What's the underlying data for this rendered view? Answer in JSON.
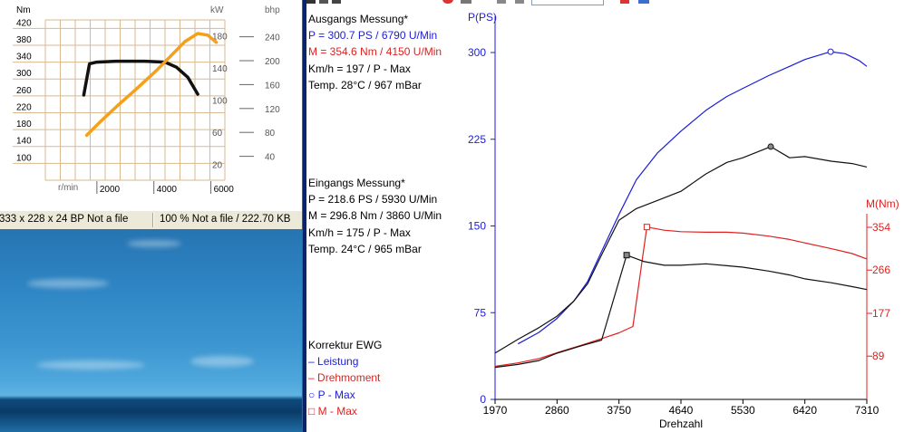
{
  "spec_chart": {
    "left_unit": "Nm",
    "kw_unit": "kW",
    "bhp_unit": "bhp",
    "nm_ticks": [
      "420",
      "380",
      "340",
      "300",
      "260",
      "220",
      "180",
      "140",
      "100"
    ],
    "kw_ticks": [
      "180",
      "140",
      "100",
      "60",
      "20"
    ],
    "bhp_ticks": [
      "240",
      "200",
      "160",
      "120",
      "80",
      "40"
    ],
    "x_unit": "r/min",
    "x_ticks": [
      "2000",
      "4000",
      "6000"
    ],
    "colors": {
      "torque": "#111111",
      "power": "#f5a01a",
      "grid": "#d9b98f"
    }
  },
  "status_bar": {
    "left": "333 x 228 x 24 BP Not a file",
    "right": "100 % Not a file / 222.70 KB"
  },
  "measurement": {
    "ausgang": {
      "title": "Ausgangs Messung*",
      "power": "P = 300.7 PS / 6790 U/Min",
      "torque": "M = 354.6 Nm / 4150 U/Min",
      "speed": "Km/h = 197 / P - Max",
      "temp": "Temp. 28°C / 967 mBar"
    },
    "eingang": {
      "title": "Eingangs Messung*",
      "power": "P = 218.6 PS / 5930 U/Min",
      "torque": "M = 296.8 Nm / 3860 U/Min",
      "speed": "Km/h = 175 / P - Max",
      "temp": "Temp. 24°C / 965 mBar"
    }
  },
  "legend": {
    "title": "Korrektur EWG",
    "leistung": "Leistung",
    "drehmoment": "Drehmoment",
    "p_max": "P - Max",
    "m_max": "M - Max"
  },
  "chart_data": [
    {
      "type": "line",
      "title": "",
      "xlabel": "r/min",
      "left_ylabel": "Nm",
      "right_ylabels": [
        "kW",
        "bhp"
      ],
      "x_ticks": [
        2000,
        4000,
        6000
      ],
      "xlim": [
        0,
        6300
      ],
      "left_y_ticks": [
        420,
        380,
        340,
        300,
        260,
        220,
        180,
        140,
        100
      ],
      "ylim": [
        60,
        440
      ],
      "kw_ticks": [
        180,
        140,
        100,
        60,
        20
      ],
      "kw_lim": [
        0,
        200
      ],
      "bhp_ticks": [
        240,
        200,
        160,
        120,
        80,
        40
      ],
      "series": [
        {
          "axis": "Nm",
          "points": [
            [
              1350,
              262
            ],
            [
              1550,
              336
            ],
            [
              1800,
              340
            ],
            [
              2500,
              342
            ],
            [
              3500,
              342
            ],
            [
              4200,
              340
            ],
            [
              4600,
              328
            ],
            [
              5000,
              304
            ],
            [
              5350,
              264
            ]
          ]
        },
        {
          "axis": "kW",
          "points": [
            [
              1450,
              56
            ],
            [
              1900,
              72
            ],
            [
              2500,
              92
            ],
            [
              3200,
              114
            ],
            [
              3900,
              137
            ],
            [
              4400,
              155
            ],
            [
              4900,
              173
            ],
            [
              5350,
              183
            ],
            [
              5700,
              181
            ],
            [
              6000,
              172
            ]
          ]
        }
      ],
      "grid": true
    },
    {
      "type": "line",
      "title": "",
      "xlabel": "Drehzahl",
      "ylabel": "P(PS)",
      "right_ylabel": "M(Nm)",
      "x_ticks": [
        1970,
        2860,
        3750,
        4640,
        5530,
        6420,
        7310
      ],
      "xlim": [
        1970,
        7310
      ],
      "y_ticks": [
        0,
        75,
        150,
        225,
        300
      ],
      "ylim": [
        0,
        300
      ],
      "right_ticks": [
        89,
        177,
        266,
        354
      ],
      "right_lim": [
        0,
        354
      ],
      "series": [
        {
          "name": "Leistung",
          "measurement": "Ausgangs Messung*",
          "axis": "left",
          "color": "#1c1cd8",
          "points": [
            [
              2300,
              48
            ],
            [
              2600,
              58
            ],
            [
              2860,
              70
            ],
            [
              3100,
              85
            ],
            [
              3300,
              102
            ],
            [
              3500,
              128
            ],
            [
              3750,
              160
            ],
            [
              4000,
              190
            ],
            [
              4300,
              213
            ],
            [
              4640,
              232
            ],
            [
              5000,
              250
            ],
            [
              5300,
              262
            ],
            [
              5530,
              269
            ],
            [
              5900,
              280
            ],
            [
              6200,
              288
            ],
            [
              6420,
              294
            ],
            [
              6790,
              300.7
            ],
            [
              7000,
              299
            ],
            [
              7200,
              293
            ],
            [
              7310,
              288
            ]
          ]
        },
        {
          "name": "Leistung",
          "measurement": "Eingangs Messung*",
          "axis": "left",
          "color": "#111111",
          "points": [
            [
              1970,
              40
            ],
            [
              2300,
              52
            ],
            [
              2600,
              62
            ],
            [
              2860,
              72
            ],
            [
              3100,
              85
            ],
            [
              3300,
              100
            ],
            [
              3500,
              125
            ],
            [
              3750,
              155
            ],
            [
              4000,
              165
            ],
            [
              4300,
              172
            ],
            [
              4640,
              180
            ],
            [
              5000,
              195
            ],
            [
              5300,
              205
            ],
            [
              5530,
              209
            ],
            [
              5930,
              218.6
            ],
            [
              6200,
              209
            ],
            [
              6420,
              210
            ],
            [
              6800,
              206
            ],
            [
              7100,
              204
            ],
            [
              7310,
              201
            ]
          ]
        },
        {
          "name": "Drehmoment",
          "measurement": "Ausgangs Messung*",
          "axis": "right",
          "color": "#e02020",
          "points": [
            [
              1970,
              68
            ],
            [
              2300,
              75
            ],
            [
              2600,
              84
            ],
            [
              2860,
              96
            ],
            [
              3200,
              111
            ],
            [
              3500,
              125
            ],
            [
              3750,
              137
            ],
            [
              3950,
              150
            ],
            [
              4150,
              354.6
            ],
            [
              4400,
              348
            ],
            [
              4640,
              345
            ],
            [
              5000,
              344
            ],
            [
              5300,
              344
            ],
            [
              5530,
              342
            ],
            [
              5900,
              336
            ],
            [
              6200,
              329
            ],
            [
              6420,
              322
            ],
            [
              6800,
              310
            ],
            [
              7100,
              300
            ],
            [
              7310,
              289
            ]
          ]
        },
        {
          "name": "Drehmoment",
          "measurement": "Eingangs Messung*",
          "axis": "right",
          "color": "#111111",
          "points": [
            [
              1970,
              66
            ],
            [
              2300,
              72
            ],
            [
              2600,
              80
            ],
            [
              2860,
              95
            ],
            [
              3200,
              110
            ],
            [
              3500,
              122
            ],
            [
              3860,
              296.8
            ],
            [
              4100,
              284
            ],
            [
              4400,
              276
            ],
            [
              4640,
              276
            ],
            [
              5000,
              279
            ],
            [
              5300,
              275
            ],
            [
              5530,
              272
            ],
            [
              5900,
              264
            ],
            [
              6200,
              256
            ],
            [
              6420,
              248
            ],
            [
              6800,
              240
            ],
            [
              7100,
              232
            ],
            [
              7310,
              226
            ]
          ]
        }
      ],
      "markers": [
        {
          "legend": "P - Max",
          "series": "Leistung / Ausgangs Messung*",
          "rpm": 6790,
          "value": 300.7
        },
        {
          "legend": "P - Max",
          "series": "Leistung / Eingangs Messung*",
          "rpm": 5930,
          "value": 218.6
        },
        {
          "legend": "M - Max",
          "series": "Drehmoment / Ausgangs Messung*",
          "rpm": 4150,
          "value": 354.6
        },
        {
          "legend": "M - Max",
          "series": "Drehmoment / Eingangs Messung*",
          "rpm": 3860,
          "value": 296.8
        }
      ],
      "grid": false
    }
  ]
}
